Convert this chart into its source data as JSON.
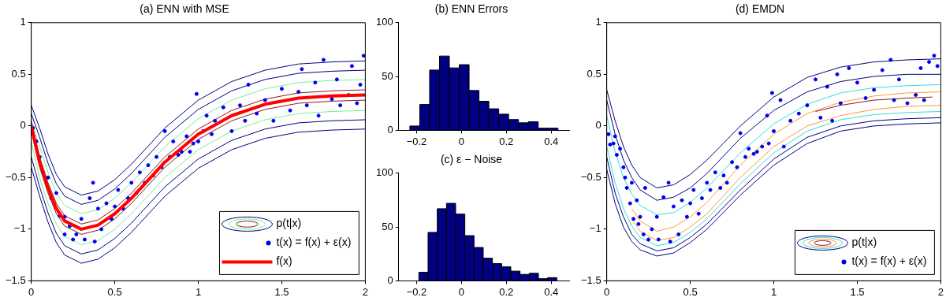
{
  "chart_data": [
    {
      "type": "line",
      "title": "(a) ENN with MSE",
      "xlim": [
        0,
        2
      ],
      "xticks": [
        0,
        0.5,
        1,
        1.5,
        2
      ],
      "ylim": [
        -1.5,
        1
      ],
      "yticks": [
        {
          "value": -1.5,
          "label": "−1.5"
        },
        {
          "value": -1,
          "label": "−1"
        },
        {
          "value": -0.5,
          "label": "−0.5"
        },
        0,
        0.5,
        1
      ],
      "legend": "bottom right",
      "x": [
        0,
        0.05,
        0.1,
        0.15,
        0.2,
        0.3,
        0.4,
        0.5,
        0.6,
        0.8,
        1.0,
        1.2,
        1.4,
        1.6,
        1.8,
        2.0
      ],
      "series": [
        {
          "name": "p(t|x)",
          "type": "line",
          "color": "#000080",
          "values": [
            0.2,
            -0.02,
            -0.27,
            -0.47,
            -0.59,
            -0.67,
            -0.63,
            -0.52,
            -0.37,
            -0.02,
            0.25,
            0.43,
            0.54,
            0.6,
            0.62,
            0.63
          ]
        },
        {
          "type": "line",
          "color": "#000080",
          "values": [
            0.12,
            -0.11,
            -0.36,
            -0.56,
            -0.68,
            -0.76,
            -0.72,
            -0.61,
            -0.46,
            -0.11,
            0.16,
            0.34,
            0.45,
            0.51,
            0.53,
            0.54
          ]
        },
        {
          "type": "line",
          "color": "#77ee99",
          "values": [
            0.05,
            -0.2,
            -0.45,
            -0.65,
            -0.77,
            -0.85,
            -0.81,
            -0.7,
            -0.55,
            -0.2,
            0.07,
            0.25,
            0.36,
            0.42,
            0.44,
            0.45
          ]
        },
        {
          "type": "line",
          "color": "#8b1a1a",
          "values": [
            0.05,
            -0.3,
            -0.55,
            -0.75,
            -0.87,
            -0.95,
            -0.91,
            -0.8,
            -0.65,
            -0.3,
            -0.03,
            0.15,
            0.26,
            0.32,
            0.34,
            0.35
          ]
        },
        {
          "type": "line",
          "color": "#8b1a1a",
          "values": [
            -0.05,
            -0.4,
            -0.65,
            -0.85,
            -0.97,
            -1.05,
            -1.01,
            -0.9,
            -0.75,
            -0.4,
            -0.13,
            0.05,
            0.16,
            0.22,
            0.24,
            0.25
          ]
        },
        {
          "type": "line",
          "color": "#77ee99",
          "values": [
            -0.15,
            -0.5,
            -0.75,
            -0.95,
            -1.07,
            -1.15,
            -1.11,
            -1.0,
            -0.85,
            -0.5,
            -0.23,
            -0.05,
            0.06,
            0.12,
            0.14,
            0.15
          ]
        },
        {
          "type": "line",
          "color": "#000080",
          "values": [
            -0.3,
            -0.59,
            -0.84,
            -1.04,
            -1.16,
            -1.24,
            -1.2,
            -1.09,
            -0.94,
            -0.59,
            -0.32,
            -0.14,
            -0.03,
            0.03,
            0.05,
            0.06
          ]
        },
        {
          "type": "line",
          "color": "#000080",
          "values": [
            -0.4,
            -0.68,
            -0.93,
            -1.13,
            -1.25,
            -1.33,
            -1.29,
            -1.18,
            -1.03,
            -0.68,
            -0.41,
            -0.23,
            -0.12,
            -0.06,
            -0.04,
            -0.03
          ]
        },
        {
          "name": "t(x) = f(x) + ε(x)",
          "type": "scatter",
          "marker": "circle",
          "color": "#0000ee",
          "x": [
            0.01,
            0.03,
            0.05,
            0.07,
            0.1,
            0.12,
            0.15,
            0.17,
            0.2,
            0.2,
            0.23,
            0.25,
            0.27,
            0.3,
            0.32,
            0.35,
            0.37,
            0.38,
            0.4,
            0.42,
            0.45,
            0.48,
            0.5,
            0.52,
            0.55,
            0.58,
            0.6,
            0.63,
            0.65,
            0.68,
            0.7,
            0.73,
            0.75,
            0.78,
            0.8,
            0.83,
            0.85,
            0.88,
            0.9,
            0.93,
            0.95,
            0.97,
            0.99,
            1.0,
            1.03,
            1.05,
            1.08,
            1.1,
            1.15,
            1.2,
            1.25,
            1.28,
            1.3,
            1.35,
            1.4,
            1.45,
            1.5,
            1.55,
            1.6,
            1.62,
            1.65,
            1.7,
            1.72,
            1.75,
            1.8,
            1.83,
            1.85,
            1.9,
            1.92,
            1.95,
            1.97,
            1.99
          ],
          "values": [
            -0.02,
            -0.15,
            -0.3,
            -0.45,
            -0.5,
            -0.7,
            -0.65,
            -0.87,
            -0.88,
            -1.05,
            -0.97,
            -1.1,
            -1.05,
            -0.9,
            -1.1,
            -0.7,
            -0.55,
            -1.12,
            -0.8,
            -1.0,
            -0.75,
            -0.9,
            -0.78,
            -0.62,
            -0.8,
            -0.7,
            -0.55,
            -0.65,
            -0.45,
            -0.55,
            -0.38,
            -0.48,
            -0.3,
            -0.4,
            -0.05,
            -0.3,
            -0.15,
            -0.28,
            -0.25,
            -0.1,
            -0.25,
            -0.17,
            0.31,
            -0.15,
            -0.05,
            0.1,
            -0.08,
            0.05,
            0.18,
            -0.05,
            0.2,
            0.05,
            0.4,
            0.12,
            0.25,
            0.05,
            0.36,
            0.15,
            0.33,
            0.55,
            0.2,
            0.42,
            0.1,
            0.64,
            0.26,
            0.45,
            0.2,
            0.3,
            0.58,
            0.22,
            0.4,
            0.68
          ]
        },
        {
          "name": "f(x)",
          "type": "line",
          "color": "#ff0000",
          "values": [
            0,
            -0.35,
            -0.6,
            -0.8,
            -0.92,
            -1.0,
            -0.96,
            -0.85,
            -0.7,
            -0.35,
            -0.08,
            0.1,
            0.21,
            0.27,
            0.29,
            0.3
          ]
        }
      ]
    },
    {
      "type": "histogram",
      "title": "(b) ENN Errors",
      "color": "#000080",
      "xlim": [
        -0.28,
        0.48
      ],
      "xticks": [
        {
          "value": -0.2,
          "label": "−0.2"
        },
        0,
        0.2,
        0.4
      ],
      "ylim": [
        0,
        100
      ],
      "yticks": [
        0,
        50,
        100
      ],
      "bins": [
        -0.23,
        -0.186,
        -0.142,
        -0.098,
        -0.054,
        -0.01,
        0.034,
        0.078,
        0.122,
        0.166,
        0.21,
        0.254,
        0.298,
        0.342,
        0.386,
        0.43
      ],
      "values": [
        4,
        24,
        56,
        69,
        58,
        61,
        37,
        27,
        20,
        15,
        10,
        7,
        8,
        2,
        2
      ]
    },
    {
      "type": "histogram",
      "title": "(c) ε − Noise",
      "color": "#000080",
      "xlim": [
        -0.28,
        0.48
      ],
      "xticks": [
        {
          "value": -0.2,
          "label": "−0.2"
        },
        0,
        0.2,
        0.4
      ],
      "ylim": [
        0,
        100
      ],
      "yticks": [
        0,
        50,
        100
      ],
      "bins": [
        -0.19,
        -0.149,
        -0.108,
        -0.067,
        -0.026,
        0.015,
        0.056,
        0.097,
        0.138,
        0.179,
        0.22,
        0.261,
        0.302,
        0.343,
        0.384,
        0.425
      ],
      "values": [
        8,
        45,
        67,
        72,
        62,
        42,
        31,
        21,
        16,
        13,
        9,
        6,
        7,
        2,
        3
      ]
    },
    {
      "type": "line",
      "title": "(d) EMDN",
      "xlim": [
        0,
        2
      ],
      "xticks": [
        0,
        0.5,
        1,
        1.5,
        2
      ],
      "ylim": [
        -1.5,
        1
      ],
      "yticks": [
        {
          "value": -1.5,
          "label": "−1.5"
        },
        {
          "value": -1,
          "label": "−1"
        },
        {
          "value": -0.5,
          "label": "−0.5"
        },
        0,
        0.5,
        1
      ],
      "legend": "bottom right",
      "x": [
        0,
        0.05,
        0.1,
        0.15,
        0.2,
        0.3,
        0.4,
        0.5,
        0.6,
        0.8,
        1.0,
        1.2,
        1.4,
        1.6,
        1.8,
        2.0
      ],
      "series": [
        {
          "name": "p(t|x)",
          "type": "line",
          "color": "#000080",
          "values": [
            0.35,
            0.05,
            -0.2,
            -0.38,
            -0.5,
            -0.6,
            -0.57,
            -0.47,
            -0.33,
            0.0,
            0.28,
            0.47,
            0.57,
            0.62,
            0.64,
            0.65
          ]
        },
        {
          "type": "line",
          "color": "#000080",
          "values": [
            0.25,
            -0.08,
            -0.33,
            -0.5,
            -0.62,
            -0.72,
            -0.69,
            -0.6,
            -0.46,
            -0.12,
            0.15,
            0.33,
            0.43,
            0.48,
            0.5,
            0.5
          ]
        },
        {
          "type": "line",
          "color": "#33dddd",
          "values": [
            0.1,
            -0.25,
            -0.5,
            -0.66,
            -0.77,
            -0.86,
            -0.84,
            -0.74,
            -0.6,
            -0.26,
            0.02,
            0.21,
            0.32,
            0.37,
            0.39,
            0.4
          ]
        },
        {
          "type": "line",
          "color": "#ff9933",
          "values": [
            null,
            null,
            null,
            -0.8,
            -0.92,
            -1.02,
            -0.98,
            -0.88,
            -0.74,
            -0.38,
            -0.08,
            0.12,
            0.23,
            0.29,
            0.32,
            0.33
          ]
        },
        {
          "type": "line",
          "color": "#8b1a1a",
          "x": [
            1.25,
            1.4,
            1.6,
            1.8,
            1.95
          ],
          "values": [
            0.14,
            0.2,
            0.25,
            0.27,
            0.28
          ]
        },
        {
          "type": "line",
          "color": "#ff9933",
          "values": [
            null,
            null,
            null,
            -0.9,
            -1.02,
            -1.11,
            -1.08,
            -0.98,
            -0.85,
            -0.5,
            -0.2,
            0.0,
            0.1,
            0.16,
            0.19,
            0.2
          ]
        },
        {
          "type": "line",
          "color": "#33dddd",
          "values": [
            -0.2,
            -0.55,
            -0.8,
            -0.97,
            -1.08,
            -1.16,
            -1.13,
            -1.03,
            -0.9,
            -0.56,
            -0.26,
            -0.05,
            0.06,
            0.11,
            0.13,
            0.14
          ]
        },
        {
          "type": "line",
          "color": "#000080",
          "values": [
            -0.3,
            -0.65,
            -0.88,
            -1.05,
            -1.14,
            -1.21,
            -1.18,
            -1.08,
            -0.95,
            -0.62,
            -0.32,
            -0.11,
            0.0,
            0.05,
            0.07,
            0.08
          ]
        },
        {
          "type": "line",
          "color": "#000080",
          "values": [
            -0.42,
            -0.75,
            -0.98,
            -1.12,
            -1.2,
            -1.26,
            -1.23,
            -1.13,
            -1.0,
            -0.67,
            -0.38,
            -0.17,
            -0.05,
            0.0,
            0.02,
            0.03
          ]
        },
        {
          "name": "t(x) = f(x) + ε(x)",
          "type": "scatter",
          "marker": "circle",
          "color": "#0000ee",
          "x": [
            0.01,
            0.02,
            0.04,
            0.05,
            0.06,
            0.08,
            0.1,
            0.11,
            0.12,
            0.14,
            0.15,
            0.16,
            0.18,
            0.19,
            0.2,
            0.22,
            0.23,
            0.25,
            0.27,
            0.3,
            0.31,
            0.34,
            0.37,
            0.38,
            0.4,
            0.43,
            0.45,
            0.48,
            0.5,
            0.52,
            0.55,
            0.57,
            0.6,
            0.62,
            0.65,
            0.68,
            0.7,
            0.72,
            0.75,
            0.78,
            0.8,
            0.83,
            0.85,
            0.88,
            0.9,
            0.93,
            0.96,
            0.97,
            0.99,
            1.0,
            1.04,
            1.06,
            1.1,
            1.15,
            1.2,
            1.25,
            1.28,
            1.32,
            1.35,
            1.38,
            1.4,
            1.45,
            1.5,
            1.55,
            1.6,
            1.65,
            1.7,
            1.72,
            1.75,
            1.8,
            1.85,
            1.88,
            1.9,
            1.93,
            1.96,
            1.98
          ],
          "values": [
            -0.08,
            -0.18,
            -0.17,
            -0.1,
            -0.28,
            -0.22,
            -0.4,
            -0.5,
            -0.6,
            -0.75,
            -0.55,
            -0.9,
            -0.72,
            -0.95,
            -0.88,
            -1.05,
            -0.6,
            -1.1,
            -1.0,
            -0.88,
            -1.1,
            -0.69,
            -0.55,
            -1.12,
            -0.78,
            -1.05,
            -0.72,
            -0.88,
            -0.75,
            -0.62,
            -0.85,
            -0.7,
            -0.55,
            -0.62,
            -0.45,
            -0.6,
            -0.48,
            -0.55,
            -0.35,
            -0.4,
            -0.07,
            -0.3,
            -0.22,
            -0.27,
            -0.25,
            -0.2,
            0.1,
            -0.17,
            0.32,
            -0.05,
            0.25,
            -0.2,
            0.05,
            0.12,
            0.2,
            0.45,
            0.08,
            0.38,
            0.05,
            0.5,
            0.22,
            0.56,
            0.42,
            0.27,
            0.35,
            0.54,
            0.64,
            0.25,
            0.45,
            0.22,
            0.3,
            0.56,
            0.25,
            0.62,
            0.68,
            0.58
          ]
        }
      ]
    }
  ]
}
